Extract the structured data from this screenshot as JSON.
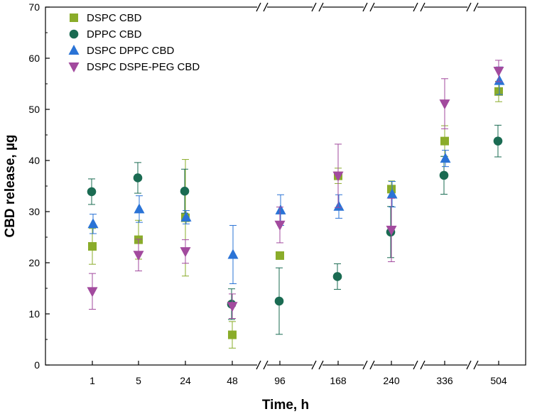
{
  "chart_data": {
    "type": "scatter",
    "xlabel": "Time, h",
    "ylabel": "CBD release, µg",
    "categories": [
      "1",
      "5",
      "24",
      "48",
      "96",
      "168",
      "240",
      "336",
      "504"
    ],
    "ylim": [
      0,
      70
    ],
    "yticks": [
      0,
      10,
      20,
      30,
      40,
      50,
      60,
      70
    ],
    "axis_breaks_after": [
      "48",
      "168",
      "240",
      "336"
    ],
    "grid": false,
    "legend_position": "top-left",
    "series": [
      {
        "name": "DSPC CBD",
        "marker": "square",
        "color": "#8aac2a",
        "values": [
          23.2,
          24.5,
          28.8,
          5.9,
          21.4,
          37.0,
          34.4,
          43.8,
          53.5
        ],
        "errors": [
          3.5,
          3.8,
          11.4,
          2.6,
          0.5,
          1.5,
          1.6,
          3.0,
          2.0
        ]
      },
      {
        "name": "DPPC CBD",
        "marker": "circle",
        "color": "#1a6b52",
        "values": [
          33.9,
          36.6,
          34.0,
          11.9,
          12.5,
          17.3,
          26.0,
          37.1,
          43.8
        ],
        "errors": [
          2.5,
          3.0,
          4.3,
          3.0,
          6.5,
          2.5,
          5.0,
          3.7,
          3.1
        ]
      },
      {
        "name": "DSPC DPPC CBD",
        "marker": "triangle-up",
        "color": "#2a73d6",
        "values": [
          27.6,
          30.5,
          28.9,
          21.6,
          30.3,
          31.0,
          33.4,
          40.4,
          55.6
        ],
        "errors": [
          1.9,
          2.6,
          1.3,
          5.7,
          3.0,
          2.3,
          2.5,
          1.6,
          2.7
        ]
      },
      {
        "name": "DSPC DSPE-PEG CBD",
        "marker": "triangle-down",
        "color": "#a24a9e",
        "values": [
          14.4,
          21.5,
          22.2,
          11.5,
          27.4,
          37.0,
          26.4,
          51.1,
          57.5
        ],
        "errors": [
          3.5,
          3.1,
          2.3,
          2.4,
          3.5,
          6.2,
          6.2,
          4.9,
          2.1
        ]
      }
    ]
  }
}
